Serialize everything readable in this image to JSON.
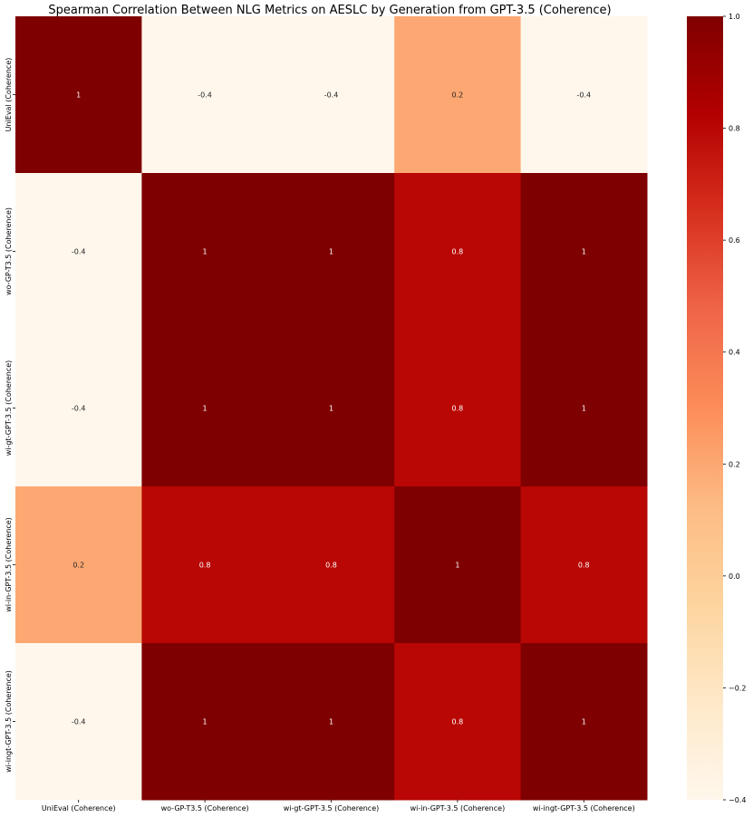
{
  "chart_data": {
    "type": "heatmap",
    "title": "Spearman Correlation Between NLG Metrics on AESLC by Generation from GPT-3.5 (Coherence)",
    "xlabel": "",
    "ylabel": "",
    "row_labels": [
      "UniEval (Coherence)",
      "wo-GP-T3.5 (Coherence)",
      "wi-gt-GPT-3.5 (Coherence)",
      "wi-in-GPT-3.5 (Coherence)",
      "wi-ingt-GPT-3.5 (Coherence)"
    ],
    "col_labels": [
      "UniEval (Coherence)",
      "wo-GP-T3.5 (Coherence)",
      "wi-gt-GPT-3.5 (Coherence)",
      "wi-in-GPT-3.5 (Coherence)",
      "wi-ingt-GPT-3.5 (Coherence)"
    ],
    "values": [
      [
        1,
        -0.4,
        -0.4,
        0.2,
        -0.4
      ],
      [
        -0.4,
        1,
        1,
        0.8,
        1
      ],
      [
        -0.4,
        1,
        1,
        0.8,
        1
      ],
      [
        0.2,
        0.8,
        0.8,
        1,
        0.8
      ],
      [
        -0.4,
        1,
        1,
        0.8,
        1
      ]
    ],
    "value_labels": [
      [
        "1",
        "-0.4",
        "-0.4",
        "0.2",
        "-0.4"
      ],
      [
        "-0.4",
        "1",
        "1",
        "0.8",
        "1"
      ],
      [
        "-0.4",
        "1",
        "1",
        "0.8",
        "1"
      ],
      [
        "0.2",
        "0.8",
        "0.8",
        "1",
        "0.8"
      ],
      [
        "-0.4",
        "1",
        "1",
        "0.8",
        "1"
      ]
    ],
    "colorbar": {
      "range": [
        -0.4,
        1.0
      ],
      "ticks": [
        -0.4,
        -0.2,
        0.0,
        0.2,
        0.4,
        0.6,
        0.8,
        1.0
      ],
      "tick_labels": [
        "−0.4",
        "−0.2",
        "0.0",
        "0.2",
        "0.4",
        "0.6",
        "0.8",
        "1.0"
      ]
    },
    "colormap": "OrRd",
    "colormap_stops": [
      "#fff7ec",
      "#fee8c8",
      "#fdd49e",
      "#fdbb84",
      "#fc8d59",
      "#ef6548",
      "#d7301f",
      "#b30000",
      "#7f0000"
    ],
    "text_colors": {
      "dark_cell": "#ffffff",
      "light_cell": "#262626"
    },
    "grid": false
  }
}
